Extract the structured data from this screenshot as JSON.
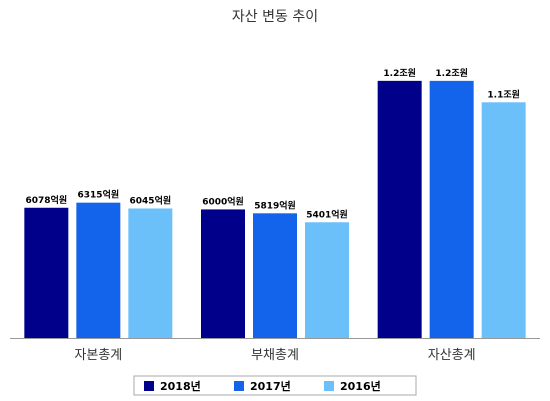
{
  "chart_data": {
    "type": "bar",
    "title": "자산 변동 추이",
    "categories": [
      "자본총계",
      "부채총계",
      "자산총계"
    ],
    "series": [
      {
        "name": "2018년",
        "color": "#00008B",
        "values": [
          6078,
          6000,
          12000
        ],
        "labels": [
          "6078억원",
          "6000억원",
          "1.2조원"
        ]
      },
      {
        "name": "2017년",
        "color": "#1463EB",
        "values": [
          6315,
          5819,
          12000
        ],
        "labels": [
          "6315억원",
          "5819억원",
          "1.2조원"
        ]
      },
      {
        "name": "2016년",
        "color": "#6CC0FA",
        "values": [
          6045,
          5401,
          11000
        ],
        "labels": [
          "6045억원",
          "5401억원",
          "1.1조원"
        ]
      }
    ],
    "unit": "억원",
    "ylim": [
      0,
      14000
    ],
    "grid": false,
    "legend_position": "bottom"
  }
}
